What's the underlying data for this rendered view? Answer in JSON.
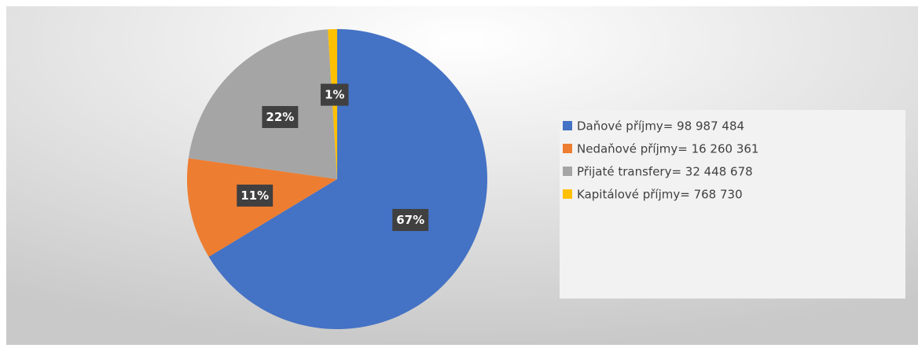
{
  "chart_data": {
    "type": "pie",
    "categories": [
      "Daňové příjmy= 98 987 484",
      "Nedaňové příjmy= 16 260 361",
      "Přijaté transfery= 32 448 678",
      "Kapitálové příjmy= 768 730"
    ],
    "values": [
      67,
      11,
      22,
      1
    ],
    "value_labels": [
      "67%",
      "11%",
      "22%",
      "1%"
    ],
    "colors": [
      "#4472c4",
      "#ed7d31",
      "#a5a5a5",
      "#ffc000"
    ],
    "legend": "right"
  }
}
